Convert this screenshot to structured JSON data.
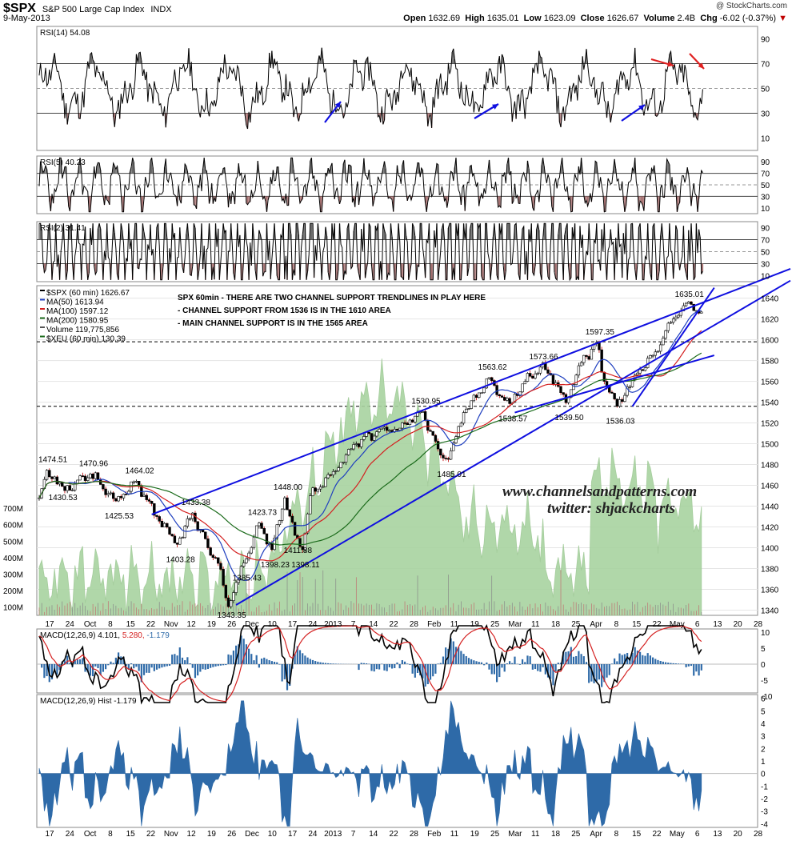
{
  "header": {
    "symbol": "$SPX",
    "name": "S&P 500 Large Cap Index",
    "exchange": "INDX",
    "date": "9-May-2013",
    "brand": "@ StockCharts.com",
    "open_label": "Open",
    "open": "1632.69",
    "high_label": "High",
    "high": "1635.01",
    "low_label": "Low",
    "low": "1623.09",
    "close_label": "Close",
    "close": "1626.67",
    "volume_label": "Volume",
    "volume": "2.4B",
    "chg_label": "Chg",
    "chg": "-6.02 (-0.37%)"
  },
  "colors": {
    "price": "#000000",
    "ma50": "#1f3fbf",
    "ma100": "#d42020",
    "ma200": "#1b6b1b",
    "volume_fill": "#a8d3a0",
    "rsi_hist": "#555555",
    "macd": "#000000",
    "signal": "#d42020",
    "hist": "#2e6aa8",
    "trendline": "#1010e0",
    "arrow_red": "#e02020"
  },
  "panels": {
    "rsi14": {
      "label": "RSI(14) 54.08",
      "ticks": [
        "90",
        "70",
        "50",
        "30",
        "10"
      ]
    },
    "rsi5": {
      "label": "RSI(5) 40.23",
      "ticks": [
        "90",
        "70",
        "50",
        "30",
        "10"
      ]
    },
    "rsi2": {
      "label": "RSI(2) 31.41",
      "ticks": [
        "90",
        "70",
        "50",
        "30",
        "10"
      ]
    },
    "macd": {
      "label": "MACD(12,26,9) 4.101,",
      "val2": "5.280,",
      "val3": "-1.179",
      "ticks": [
        "10",
        "5",
        "0",
        "-5",
        "-10"
      ]
    },
    "hist": {
      "label": "MACD(12,26,9) Hist -1.179",
      "ticks": [
        "6",
        "5",
        "4",
        "3",
        "2",
        "1",
        "0",
        "-1",
        "-2",
        "-3",
        "-4"
      ]
    }
  },
  "price_legend": [
    "$SPX (60 min) 1626.67",
    "MA(50) 1613.94",
    "MA(100) 1597.12",
    "MA(200) 1580.95",
    "Volume 119,775,856",
    "$XEU (60 min) 130.39"
  ],
  "annotation": [
    "SPX 60min - THERE ARE TWO CHANNEL SUPPORT TRENDLINES IN PLAY HERE",
    "- CHANNEL SUPPORT FROM 1536 IS IN THE 1610 AREA",
    "- MAIN CHANNEL SUPPORT IS IN THE 1565 AREA"
  ],
  "watermark": [
    "www.channelsandpatterns.com",
    "twitter: shjackcharts"
  ],
  "chart_data": {
    "type": "line",
    "title": "$SPX S&P 500 Large Cap Index INDX (60 min)",
    "y_ticks": [
      "1640",
      "1620",
      "1600",
      "1580",
      "1560",
      "1540",
      "1520",
      "1500",
      "1480",
      "1460",
      "1440",
      "1420",
      "1400",
      "1380",
      "1360",
      "1340"
    ],
    "ylim": [
      1335,
      1652
    ],
    "volume_ticks": [
      "700M",
      "600M",
      "500M",
      "400M",
      "300M",
      "200M",
      "100M"
    ],
    "x_labels": [
      "17",
      "24",
      "Oct",
      "8",
      "15",
      "22",
      "Nov",
      "12",
      "19",
      "26",
      "Dec",
      "10",
      "17",
      "24",
      "2013",
      "7",
      "14",
      "22",
      "28",
      "Feb",
      "11",
      "19",
      "25",
      "Mar",
      "11",
      "18",
      "25",
      "Apr",
      "8",
      "15",
      "22",
      "May",
      "6",
      "13",
      "20",
      "28"
    ],
    "swing_labels": [
      "1474.51",
      "1470.96",
      "1464.02",
      "1433.38",
      "1430.53",
      "1425.53",
      "1403.28",
      "1385.43",
      "1343.35",
      "1423.73",
      "1398.23",
      "1448.00",
      "1411.88",
      "1398.11",
      "1530.95",
      "1485.01",
      "1563.62",
      "1538.57",
      "1573.66",
      "1539.50",
      "1597.35",
      "1536.03",
      "1635.01"
    ],
    "price_waypoints": [
      [
        0,
        1448
      ],
      [
        3,
        1474.51
      ],
      [
        10,
        1455
      ],
      [
        20,
        1470.96
      ],
      [
        30,
        1445
      ],
      [
        38,
        1464.02
      ],
      [
        46,
        1430
      ],
      [
        54,
        1403.28
      ],
      [
        60,
        1433.38
      ],
      [
        66,
        1400
      ],
      [
        70,
        1385
      ],
      [
        74,
        1343.35
      ],
      [
        80,
        1385.43
      ],
      [
        86,
        1423.73
      ],
      [
        91,
        1398.23
      ],
      [
        96,
        1448
      ],
      [
        100,
        1411.88
      ],
      [
        103,
        1398.11
      ],
      [
        106,
        1450
      ],
      [
        114,
        1470
      ],
      [
        124,
        1500
      ],
      [
        134,
        1515
      ],
      [
        140,
        1513
      ],
      [
        150,
        1530.95
      ],
      [
        156,
        1495
      ],
      [
        160,
        1485.01
      ],
      [
        166,
        1530
      ],
      [
        176,
        1563.62
      ],
      [
        180,
        1546
      ],
      [
        184,
        1538.57
      ],
      [
        190,
        1560
      ],
      [
        196,
        1573.66
      ],
      [
        200,
        1566
      ],
      [
        206,
        1539.5
      ],
      [
        212,
        1578
      ],
      [
        218,
        1597.35
      ],
      [
        221,
        1560
      ],
      [
        226,
        1536.03
      ],
      [
        232,
        1562
      ],
      [
        240,
        1585
      ],
      [
        248,
        1620
      ],
      [
        253,
        1635.01
      ],
      [
        259,
        1626.67
      ]
    ],
    "trendlines": [
      {
        "from": [
          44,
          1432
        ],
        "to": [
          264,
          1640
        ]
      },
      {
        "from": [
          77,
          1345
        ],
        "to": [
          264,
          1614
        ]
      },
      {
        "from": [
          232,
          1536
        ],
        "to": [
          264,
          1650
        ]
      },
      {
        "from": [
          186,
          1530
        ],
        "to": [
          264,
          1585
        ]
      }
    ],
    "horizontal_refs": [
      1598,
      1536
    ]
  }
}
